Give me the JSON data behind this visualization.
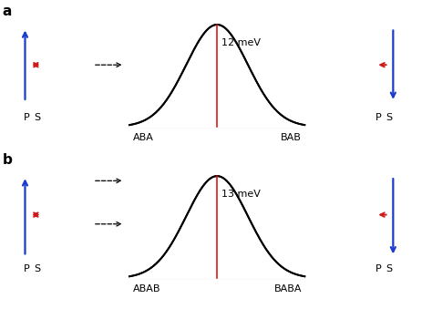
{
  "panel_a": {
    "label": "a",
    "left_label": "ABA",
    "right_label": "BAB",
    "barrier_meV": "12 meV",
    "sigma": 0.3,
    "amplitude": 1.0,
    "x_range": [
      -0.85,
      0.85
    ]
  },
  "panel_b": {
    "label": "b",
    "left_label": "ABAB",
    "right_label": "BABA",
    "barrier_meV": "13 meV",
    "sigma": 0.3,
    "amplitude": 1.0,
    "x_range": [
      -0.85,
      0.85
    ]
  },
  "curve_color": "#000000",
  "red_line_color": "#dd0000",
  "baseline_color": "#888888",
  "blue_arrow_color": "#1a3bcc",
  "red_arrow_color": "#cc1a1a",
  "background_color": "#ffffff",
  "panel_label_fontsize": 11,
  "axis_label_fontsize": 8,
  "barrier_fontsize": 8,
  "ps_fontsize": 8
}
